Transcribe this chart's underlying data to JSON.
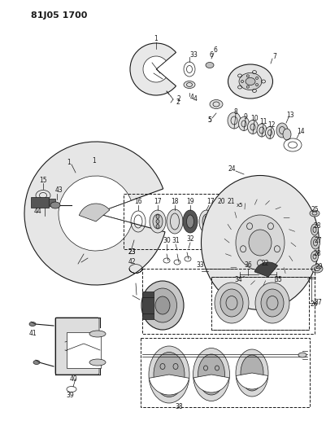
{
  "title": "81J05 1700",
  "bg_color": "#ffffff",
  "line_color": "#1a1a1a",
  "title_fontsize": 8,
  "title_fontweight": "bold"
}
